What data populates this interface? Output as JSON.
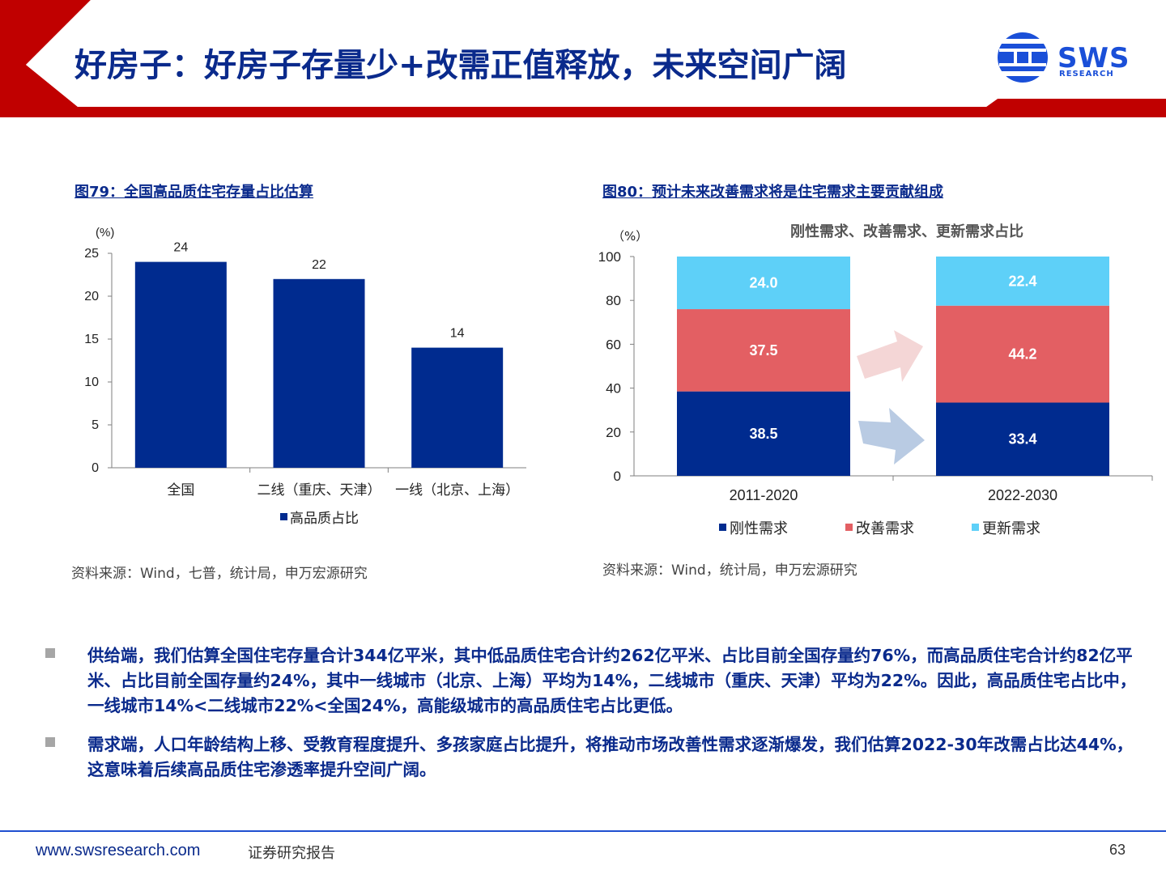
{
  "header": {
    "title": "好房子：好房子存量少+改需正值释放，未来空间广阔",
    "logo_text": "SWS",
    "logo_sub": "RESEARCH"
  },
  "figure_left": {
    "title": "图79：全国高品质住宅存量占比估算",
    "source": "资料来源：Wind，七普，统计局，申万宏源研究"
  },
  "figure_right": {
    "title": "图80：预计未来改善需求将是住宅需求主要贡献组成",
    "source": "资料来源：Wind，统计局，申万宏源研究"
  },
  "chart_data": [
    {
      "type": "bar",
      "title": "",
      "ylabel": "(%)",
      "xlabel": "",
      "categories": [
        "全国",
        "二线（重庆、天津）",
        "一线（北京、上海）"
      ],
      "series": [
        {
          "name": "高品质占比",
          "values": [
            24,
            22,
            14
          ],
          "labels": [
            "24",
            "22",
            "14"
          ],
          "color": "#002b8f"
        }
      ],
      "ylim": [
        0,
        25
      ],
      "yticks": [
        0,
        5,
        10,
        15,
        20,
        25
      ],
      "legend": "bottom",
      "grid": false
    },
    {
      "type": "bar",
      "stacked": true,
      "title": "刚性需求、改善需求、更新需求占比",
      "ylabel": "（%）",
      "xlabel": "",
      "categories": [
        "2011-2020",
        "2022-2030"
      ],
      "series": [
        {
          "name": "刚性需求",
          "values": [
            38.5,
            33.4
          ],
          "labels": [
            "38.5",
            "33.4"
          ],
          "color": "#002b8f"
        },
        {
          "name": "改善需求",
          "values": [
            37.5,
            44.2
          ],
          "labels": [
            "37.5",
            "44.2"
          ],
          "color": "#e35f63"
        },
        {
          "name": "更新需求",
          "values": [
            24.0,
            22.4
          ],
          "labels": [
            "24.0",
            "22.4"
          ],
          "color": "#5ed0f8"
        }
      ],
      "ylim": [
        0,
        100
      ],
      "yticks": [
        0,
        20,
        40,
        60,
        80,
        100
      ],
      "legend": "bottom",
      "grid": false
    }
  ],
  "bullets": [
    "供给端，我们估算全国住宅存量合计344亿平米，其中低品质住宅合计约262亿平米、占比目前全国存量约76%，而高品质住宅合计约82亿平米、占比目前全国存量约24%，其中一线城市（北京、上海）平均为14%，二线城市（重庆、天津）平均为22%。因此，高品质住宅占比中，一线城市14%<二线城市22%<全国24%，高能级城市的高品质住宅占比更低。",
    "需求端，人口年龄结构上移、受教育程度提升、多孩家庭占比提升，将推动市场改善性需求逐渐爆发，我们估算2022-30年改需占比达44%，这意味着后续高品质住宅渗透率提升空间广阔。"
  ],
  "footer": {
    "url": "www.swsresearch.com",
    "label": "证券研究报告",
    "page": "63"
  },
  "colors": {
    "brand_red": "#c00000",
    "brand_blue": "#0a2a8c",
    "logo_blue": "#1a4fd8"
  }
}
